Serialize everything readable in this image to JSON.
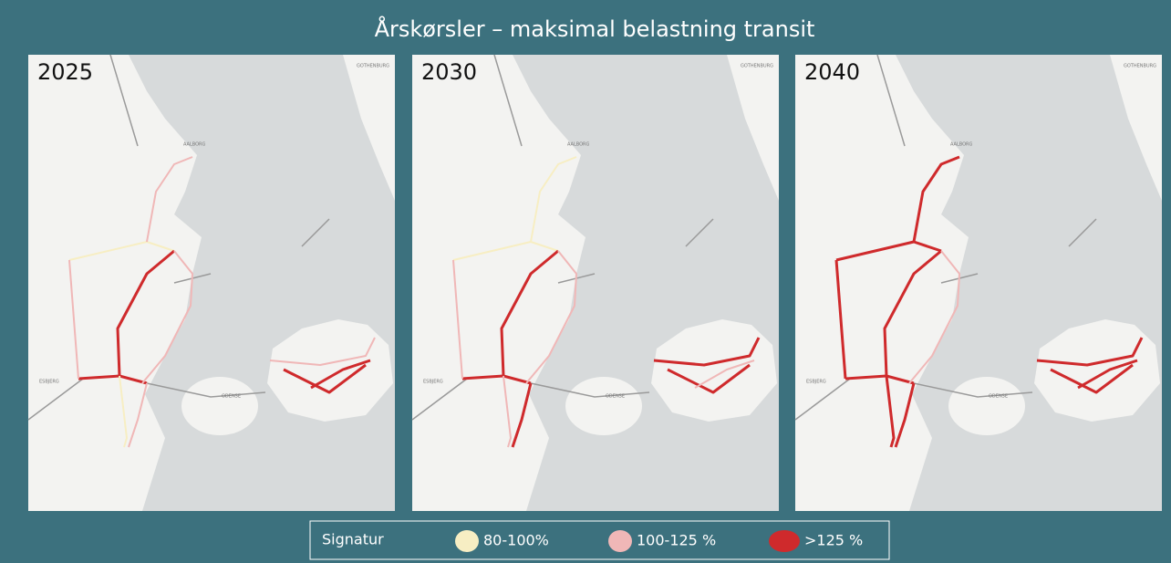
{
  "title": "Årskørsler – maksimal belastning transit",
  "panels": [
    {
      "year": "2025"
    },
    {
      "year": "2030"
    },
    {
      "year": "2040"
    }
  ],
  "map_labels": [
    "GOTHENBURG",
    "AALBORG",
    "ODENSE",
    "ESBJERG"
  ],
  "legend": {
    "title": "Signatur",
    "items": [
      {
        "label": "80-100%",
        "color": "#f7eec3"
      },
      {
        "label": "100-125 %",
        "color": "#f0b7b7"
      },
      {
        "label": ">125 %",
        "color": "#cf2a2c"
      }
    ]
  }
}
